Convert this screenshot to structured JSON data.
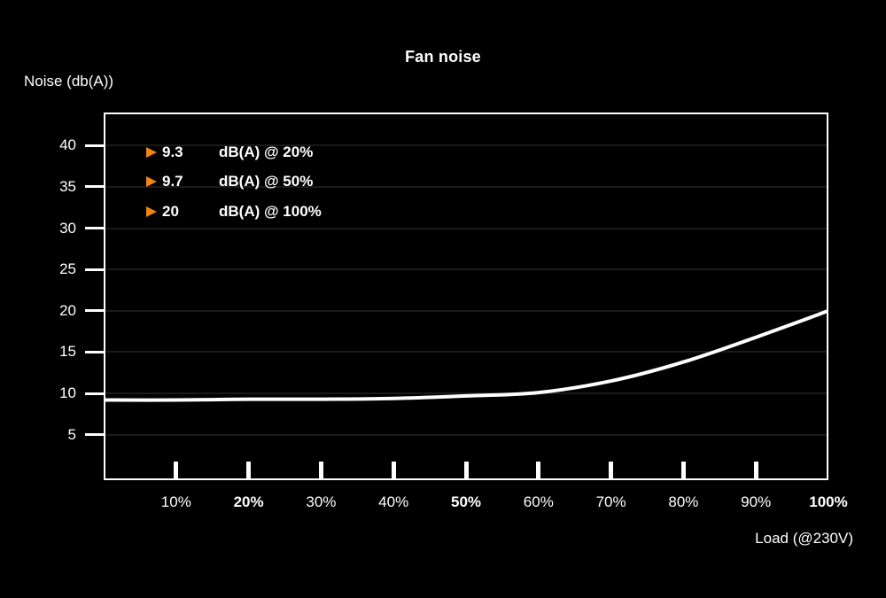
{
  "title": "Fan noise",
  "y_axis_label": "Noise (db(A))",
  "x_axis_label": "Load (@230V)",
  "colors": {
    "background": "#000000",
    "foreground": "#ffffff",
    "gridline": "#1a1a1a",
    "accent_orange": "#ee8511"
  },
  "legend": {
    "position": "top-left-inside",
    "items": [
      {
        "value": "9.3",
        "label": "dB(A) @ 20%"
      },
      {
        "value": "9.7",
        "label": "dB(A) @ 50%"
      },
      {
        "value": "20",
        "label": "dB(A) @ 100%"
      }
    ]
  },
  "chart_data": {
    "type": "line",
    "title": "Fan noise",
    "xlabel": "Load (@230V)",
    "ylabel": "Noise (db(A))",
    "x": [
      0,
      10,
      20,
      30,
      40,
      50,
      60,
      70,
      80,
      90,
      100
    ],
    "series": [
      {
        "name": "fan-noise-db",
        "color": "#ffffff",
        "values": [
          9.2,
          9.2,
          9.3,
          9.3,
          9.4,
          9.7,
          10.1,
          11.5,
          13.8,
          16.8,
          20.0
        ]
      }
    ],
    "marked_points": [
      {
        "load_percent": 20,
        "db": 9.3
      },
      {
        "load_percent": 50,
        "db": 9.7
      },
      {
        "load_percent": 100,
        "db": 20
      }
    ],
    "yticks": [
      5,
      10,
      15,
      20,
      25,
      30,
      35,
      40
    ],
    "xtick_values": [
      10,
      20,
      30,
      40,
      50,
      60,
      70,
      80,
      90,
      100
    ],
    "xtick_labels": [
      "10%",
      "20%",
      "30%",
      "40%",
      "50%",
      "60%",
      "70%",
      "80%",
      "90%",
      "100%"
    ],
    "bold_xtick_labels": [
      "20%",
      "50%",
      "100%"
    ],
    "xlim": [
      0,
      100
    ],
    "ylim": [
      -0.5,
      44
    ],
    "grid": "horizontal-only",
    "legend_position": "top-left-inside"
  }
}
